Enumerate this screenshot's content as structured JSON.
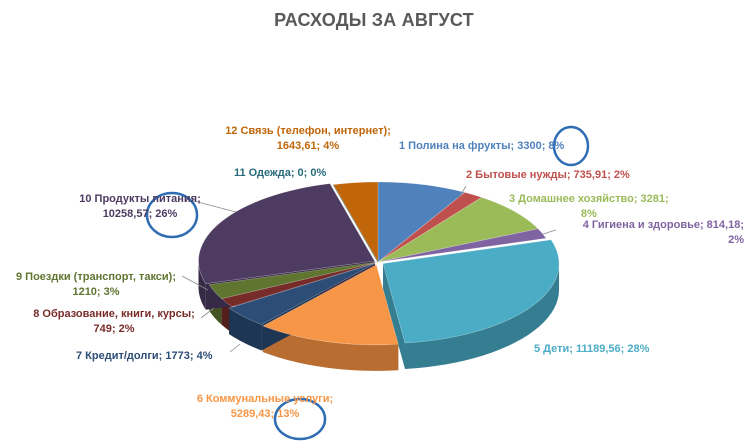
{
  "chart_data": {
    "type": "pie",
    "title": "РАСХОДЫ ЗА АВГУСТ",
    "slices": [
      {
        "label": "1 Полина на фрукты",
        "value": 3300,
        "value_text": "3300",
        "percent": 8,
        "color": "#4F81BD",
        "side": "#3A5F8C"
      },
      {
        "label": "2 Бытовые нужды",
        "value": 735.91,
        "value_text": "735,91",
        "percent": 2,
        "color": "#C0504D",
        "side": "#8C3937"
      },
      {
        "label": "3 Домашнее хозяйство",
        "value": 3281,
        "value_text": "3281",
        "percent": 8,
        "color": "#9BBB59",
        "side": "#718A40"
      },
      {
        "label": "4 Гигиена и здоровье",
        "value": 814.18,
        "value_text": "814,18",
        "percent": 2,
        "color": "#8064A2",
        "side": "#5D4977"
      },
      {
        "label": "5 Дети",
        "value": 11189.56,
        "value_text": "11189,56",
        "percent": 28,
        "color": "#4BACC6",
        "side": "#357E92"
      },
      {
        "label": "6 Коммунальные услуги",
        "value": 5289.43,
        "value_text": "5289,43",
        "percent": 13,
        "color": "#F79646",
        "side": "#B96D30"
      },
      {
        "label": "7 Кредит/долги",
        "value": 1773,
        "value_text": "1773",
        "percent": 4,
        "color": "#2C4D75",
        "side": "#1E3553"
      },
      {
        "label": "8 Образование, книги, курсы",
        "value": 749,
        "value_text": "749",
        "percent": 2,
        "color": "#772C2A",
        "side": "#541E1D"
      },
      {
        "label": "9 Поездки (транспорт, такси)",
        "value": 1210,
        "value_text": "1210",
        "percent": 3,
        "color": "#5F7530",
        "side": "#435322"
      },
      {
        "label": "10 Продукты питания",
        "value": 10258.57,
        "value_text": "10258,57",
        "percent": 26,
        "color": "#4D3B62",
        "side": "#372A46"
      },
      {
        "label": "11 Одежда",
        "value": 0,
        "value_text": "0",
        "percent": 0,
        "color": "#276A7C",
        "side": "#1B4B58"
      },
      {
        "label": "12 Связь (телефон, интернет)",
        "value": 1643.61,
        "value_text": "1643,61",
        "percent": 4,
        "color": "#C0650A",
        "side": "#8A4807"
      }
    ],
    "label_lines": [
      "1 Полина на фрукты; 3300; 8%",
      "2 Бытовые нужды; 735,91; 2%",
      "3 Домашнее хозяйство; 3281;",
      "8%",
      "4 Гигиена и здоровье; 814,18;",
      "2%",
      "5 Дети; 11189,56; 28%",
      "6 Коммунальные услуги;",
      "5289,43; 13%",
      "7 Кредит/долги; 1773; 4%",
      "8 Образование, книги, курсы;",
      "749; 2%",
      "9 Поездки (транспорт, такси);",
      "1210; 3%",
      "10 Продукты питания;",
      "10258,57; 26%",
      "11 Одежда; 0; 0%",
      "12 Связь (телефон, интернет);",
      "1643,61; 4%"
    ],
    "legend": "none",
    "style": "3d-exploded"
  }
}
